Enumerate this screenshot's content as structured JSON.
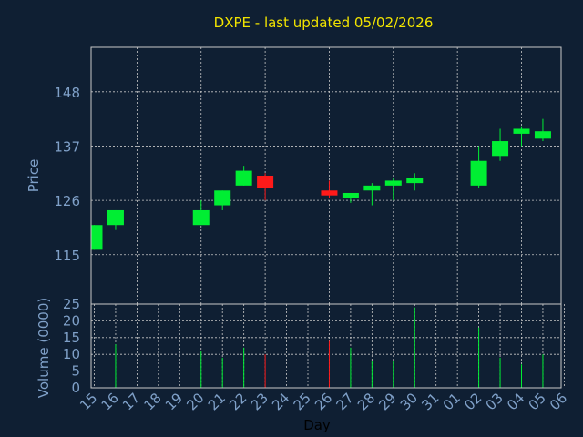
{
  "colors": {
    "background": "#0f1f33",
    "title": "#f2e400",
    "axis_text": "#7fa0c8",
    "grid": "#c8c8c8",
    "frame": "#c8c8c8",
    "up": "#00ee33",
    "down": "#ff1a1a"
  },
  "chart_data": {
    "type": "candlestick",
    "title": "DXPE - last updated 05/02/2026",
    "xlabel": "Day",
    "ylabel_price": "Price",
    "ylabel_volume": "Volume (0000)",
    "price_ticks": [
      115,
      126,
      137,
      148
    ],
    "price_range": [
      105,
      157
    ],
    "volume_ticks": [
      0,
      5,
      10,
      15,
      20,
      25
    ],
    "volume_range": [
      0,
      25
    ],
    "grid": true,
    "x_labels": [
      "15",
      "16",
      "17",
      "18",
      "19",
      "20",
      "21",
      "22",
      "23",
      "24",
      "25",
      "26",
      "27",
      "28",
      "29",
      "30",
      "31",
      "01",
      "02",
      "03",
      "04",
      "05",
      "06"
    ],
    "candles": [
      {
        "day": "15",
        "open": 116,
        "close": 121,
        "high": 121,
        "low": 116,
        "volume": 0
      },
      {
        "day": "16",
        "open": 121,
        "close": 124,
        "high": 124,
        "low": 120,
        "volume": 13
      },
      {
        "day": "20",
        "open": 121,
        "close": 124,
        "high": 126,
        "low": 121,
        "volume": 11
      },
      {
        "day": "21",
        "open": 125,
        "close": 128,
        "high": 128,
        "low": 124,
        "volume": 9
      },
      {
        "day": "22",
        "open": 129,
        "close": 132,
        "high": 133,
        "low": 129,
        "volume": 12
      },
      {
        "day": "23",
        "open": 131,
        "close": 128.5,
        "high": 131.5,
        "low": 126,
        "volume": 10
      },
      {
        "day": "26",
        "open": 128,
        "close": 127,
        "high": 130,
        "low": 126.5,
        "volume": 14
      },
      {
        "day": "27",
        "open": 126.5,
        "close": 127.5,
        "high": 127.5,
        "low": 125.5,
        "volume": 12
      },
      {
        "day": "28",
        "open": 128,
        "close": 129,
        "high": 129.5,
        "low": 125,
        "volume": 8
      },
      {
        "day": "29",
        "open": 129,
        "close": 130,
        "high": 130.5,
        "low": 126,
        "volume": 8
      },
      {
        "day": "30",
        "open": 129.5,
        "close": 130.5,
        "high": 131.5,
        "low": 128,
        "volume": 24
      },
      {
        "day": "02",
        "open": 129,
        "close": 134,
        "high": 137,
        "low": 128.5,
        "volume": 18
      },
      {
        "day": "03",
        "open": 135,
        "close": 138,
        "high": 140.5,
        "low": 134,
        "volume": 9
      },
      {
        "day": "04",
        "open": 139.5,
        "close": 140.5,
        "high": 141,
        "low": 137,
        "volume": 7
      },
      {
        "day": "05",
        "open": 138.5,
        "close": 140,
        "high": 142.5,
        "low": 138,
        "volume": 10
      }
    ]
  }
}
